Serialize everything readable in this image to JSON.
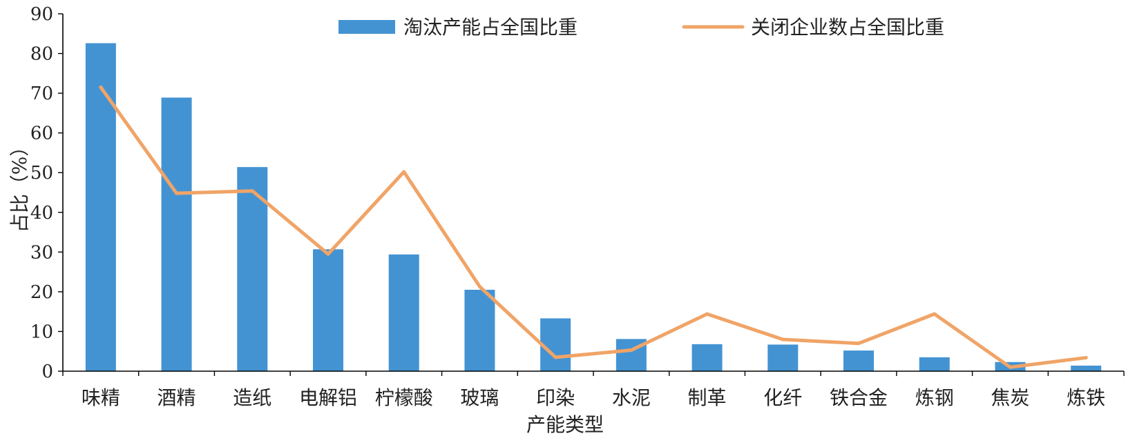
{
  "chart_data": {
    "type": "bar",
    "categories": [
      "味精",
      "酒精",
      "造纸",
      "电解铝",
      "柠檬酸",
      "玻璃",
      "印染",
      "水泥",
      "制革",
      "化纤",
      "铁合金",
      "炼钢",
      "焦炭",
      "炼铁"
    ],
    "series": [
      {
        "name": "淘汰产能占全国比重",
        "type": "bar",
        "color": "#4393d3",
        "values": [
          82.6,
          68.9,
          51.4,
          30.7,
          29.4,
          20.5,
          13.3,
          8.1,
          6.8,
          6.7,
          5.2,
          3.5,
          2.3,
          1.4
        ]
      },
      {
        "name": "关闭企业数占全国比重",
        "type": "line",
        "color": "#f0a467",
        "values": [
          71.5,
          44.8,
          45.4,
          29.5,
          50.2,
          21.3,
          3.5,
          5.3,
          14.4,
          8.0,
          7.0,
          14.4,
          1.0,
          3.4
        ]
      }
    ],
    "xlabel": "产能类型",
    "ylabel": "占比（%）",
    "ylim": [
      0,
      90
    ],
    "yticks": [
      "0",
      "10",
      "20",
      "30",
      "40",
      "50",
      "60",
      "70",
      "80",
      "90"
    ],
    "grid": false,
    "legend_position": "top"
  }
}
